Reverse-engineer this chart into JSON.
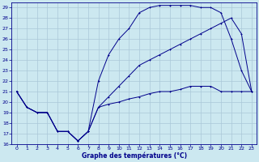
{
  "title": "Graphe des températures (°C)",
  "bg_color": "#cce8f0",
  "line_color": "#00008b",
  "grid_color": "#aac8d8",
  "xlim": [
    -0.5,
    23.5
  ],
  "ylim": [
    16,
    29.5
  ],
  "xticks": [
    0,
    1,
    2,
    3,
    4,
    5,
    6,
    7,
    8,
    9,
    10,
    11,
    12,
    13,
    14,
    15,
    16,
    17,
    18,
    19,
    20,
    21,
    22,
    23
  ],
  "yticks": [
    16,
    17,
    18,
    19,
    20,
    21,
    22,
    23,
    24,
    25,
    26,
    27,
    28,
    29
  ],
  "line1_x": [
    0,
    1,
    2,
    3,
    4,
    5,
    6,
    7,
    8,
    9,
    10,
    11,
    12,
    13,
    14,
    15,
    16,
    17,
    18,
    19,
    20,
    21,
    22,
    23
  ],
  "line1_y": [
    21,
    19.5,
    19,
    19,
    17.2,
    17.2,
    16.3,
    17.2,
    19.5,
    19.8,
    20,
    20.3,
    20.5,
    20.8,
    21,
    21,
    21.2,
    21.5,
    21.5,
    21.5,
    21,
    21,
    21,
    21
  ],
  "line2_x": [
    0,
    1,
    2,
    3,
    4,
    5,
    6,
    7,
    8,
    9,
    10,
    11,
    12,
    13,
    14,
    15,
    16,
    17,
    18,
    19,
    20,
    21,
    22,
    23
  ],
  "line2_y": [
    21,
    19.5,
    19,
    19,
    17.2,
    17.2,
    16.3,
    17.2,
    22,
    24.5,
    26,
    27,
    28.5,
    29,
    29.2,
    29.2,
    29.2,
    29.2,
    29,
    29,
    28.5,
    26,
    23,
    21
  ],
  "line3_x": [
    0,
    1,
    2,
    3,
    4,
    5,
    6,
    7,
    8,
    9,
    10,
    11,
    12,
    13,
    14,
    15,
    16,
    17,
    18,
    19,
    20,
    21,
    22,
    23
  ],
  "line3_y": [
    21,
    19.5,
    19,
    19,
    17.2,
    17.2,
    16.3,
    17.2,
    19.5,
    20.5,
    21.5,
    22.5,
    23.5,
    24,
    24.5,
    25,
    25.5,
    26,
    26.5,
    27,
    27.5,
    28,
    26.5,
    21
  ]
}
